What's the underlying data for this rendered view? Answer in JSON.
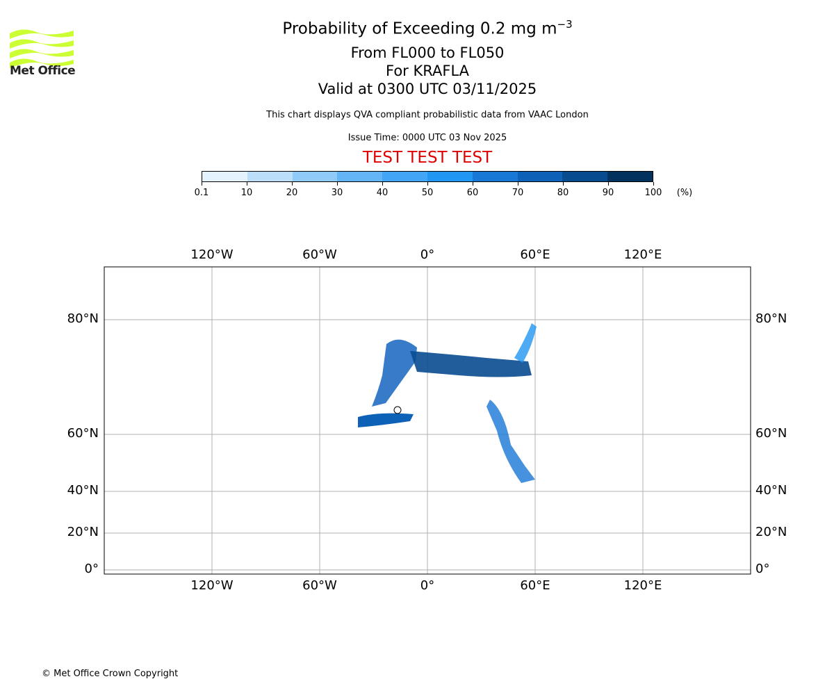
{
  "logo": {
    "text": "Met Office",
    "color": "#ccff33"
  },
  "header": {
    "title_main": "Probability of Exceeding 0.2 mg m",
    "title_sup": "−3",
    "levels": "From FL000 to FL050",
    "volcano": "For KRAFLA",
    "valid": "Valid at 0300 UTC 03/11/2025",
    "description": "This chart displays QVA compliant probabilistic data from VAAC London",
    "issue": "Issue Time: 0000 UTC 03 Nov 2025",
    "test_banner": "TEST TEST TEST"
  },
  "colorbar": {
    "ticks": [
      "0.1",
      "10",
      "20",
      "30",
      "40",
      "50",
      "60",
      "70",
      "80",
      "90",
      "100"
    ],
    "unit": "(%)",
    "colors": [
      "#e3f2fd",
      "#bbdefb",
      "#90caf9",
      "#64b5f6",
      "#42a5f5",
      "#2196f3",
      "#1977d6",
      "#0d62b7",
      "#084b8f",
      "#03325f"
    ]
  },
  "map": {
    "lon_ticks": [
      {
        "v": -120,
        "t": "120°W"
      },
      {
        "v": -60,
        "t": "60°W"
      },
      {
        "v": 0,
        "t": "0°"
      },
      {
        "v": 60,
        "t": "60°E"
      },
      {
        "v": 120,
        "t": "120°E"
      }
    ],
    "lat_ticks": [
      {
        "v": 80,
        "t": "80°N"
      },
      {
        "v": 60,
        "t": "60°N"
      },
      {
        "v": 40,
        "t": "40°N"
      },
      {
        "v": 20,
        "t": "20°N"
      },
      {
        "v": 0,
        "t": "0°"
      }
    ]
  },
  "footer": {
    "copyright": "© Met Office Crown Copyright"
  }
}
